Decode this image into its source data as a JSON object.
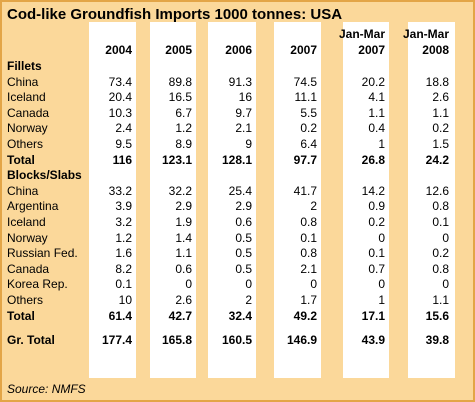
{
  "title": "Cod-like Groundfish Imports 1000 tonnes:  USA",
  "columns": [
    {
      "line1": "",
      "line2": "2004"
    },
    {
      "line1": "",
      "line2": "2005"
    },
    {
      "line1": "",
      "line2": "2006"
    },
    {
      "line1": "",
      "line2": "2007"
    },
    {
      "line1": "Jan-Mar",
      "line2": "2007"
    },
    {
      "line1": "Jan-Mar",
      "line2": "2008"
    }
  ],
  "sections": [
    {
      "name": "Fillets",
      "rows": [
        {
          "label": "China",
          "values": [
            "73.4",
            "89.8",
            "91.3",
            "74.5",
            "20.2",
            "18.8"
          ]
        },
        {
          "label": "Iceland",
          "values": [
            "20.4",
            "16.5",
            "16",
            "11.1",
            "4.1",
            "2.6"
          ]
        },
        {
          "label": "Canada",
          "values": [
            "10.3",
            "6.7",
            "9.7",
            "5.5",
            "1.1",
            "1.1"
          ]
        },
        {
          "label": "Norway",
          "values": [
            "2.4",
            "1.2",
            "2.1",
            "0.2",
            "0.4",
            "0.2"
          ]
        },
        {
          "label": "Others",
          "values": [
            "9.5",
            "8.9",
            "9",
            "6.4",
            "1",
            "1.5"
          ]
        }
      ],
      "total": {
        "label": "Total",
        "values": [
          "116",
          "123.1",
          "128.1",
          "97.7",
          "26.8",
          "24.2"
        ]
      }
    },
    {
      "name": "Blocks/Slabs",
      "rows": [
        {
          "label": "China",
          "values": [
            "33.2",
            "32.2",
            "25.4",
            "41.7",
            "14.2",
            "12.6"
          ]
        },
        {
          "label": "Argentina",
          "values": [
            "3.9",
            "2.9",
            "2.9",
            "2",
            "0.9",
            "0.8"
          ]
        },
        {
          "label": "Iceland",
          "values": [
            "3.2",
            "1.9",
            "0.6",
            "0.8",
            "0.2",
            "0.1"
          ]
        },
        {
          "label": "Norway",
          "values": [
            "1.2",
            "1.4",
            "0.5",
            "0.1",
            "0",
            "0"
          ]
        },
        {
          "label": "Russian Fed.",
          "values": [
            "1.6",
            "1.1",
            "0.5",
            "0.8",
            "0.1",
            "0.2"
          ]
        },
        {
          "label": "Canada",
          "values": [
            "8.2",
            "0.6",
            "0.5",
            "2.1",
            "0.7",
            "0.8"
          ]
        },
        {
          "label": "Korea Rep.",
          "values": [
            "0.1",
            "0",
            "0",
            "0",
            "0",
            "0"
          ]
        },
        {
          "label": "Others",
          "values": [
            "10",
            "2.6",
            "2",
            "1.7",
            "1",
            "1.1"
          ]
        }
      ],
      "total": {
        "label": "Total",
        "values": [
          "61.4",
          "42.7",
          "32.4",
          "49.2",
          "17.1",
          "15.6"
        ]
      }
    }
  ],
  "grand_total": {
    "label": "Gr. Total",
    "values": [
      "177.4",
      "165.8",
      "160.5",
      "146.9",
      "43.9",
      "39.8"
    ]
  },
  "source": "Source: NMFS"
}
